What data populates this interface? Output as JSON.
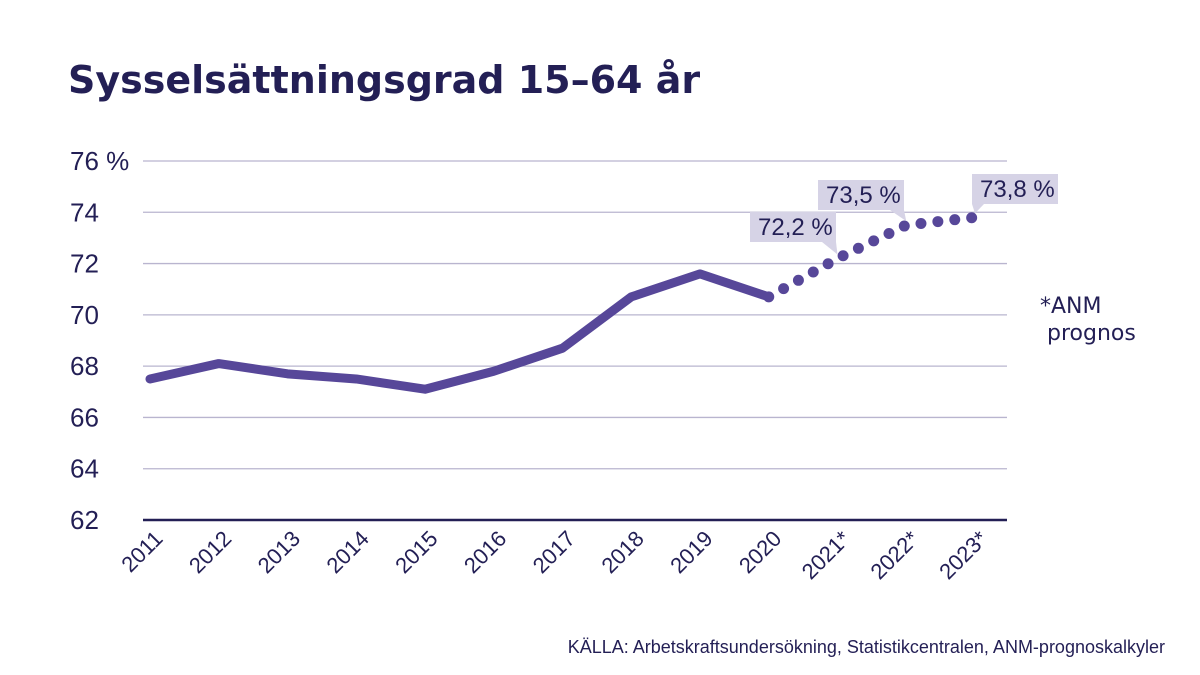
{
  "chart_data": {
    "type": "line",
    "title": "Sysselsättningsgrad 15–64 år",
    "categories": [
      "2011",
      "2012",
      "2013",
      "2014",
      "2015",
      "2016",
      "2017",
      "2018",
      "2019",
      "2020",
      "2021*",
      "2022*",
      "2023*"
    ],
    "series": [
      {
        "values": [
          67.5,
          68.1,
          67.7,
          67.5,
          67.1,
          67.8,
          68.7,
          70.7,
          71.6,
          70.7,
          72.2,
          73.5,
          73.8
        ],
        "forecast_from_index": 9
      }
    ],
    "yticks": [
      "76 %",
      "74",
      "72",
      "70",
      "68",
      "66",
      "64",
      "62"
    ],
    "ylim": [
      62,
      76
    ],
    "grid": true,
    "data_labels": [
      {
        "category": "2021*",
        "text": "72,2 %"
      },
      {
        "category": "2022*",
        "text": "73,5 %"
      },
      {
        "category": "2023*",
        "text": "73,8 %"
      }
    ],
    "note_line1": "*ANM",
    "note_line2": "prognos",
    "source": "KÄLLA: Arbetskraftsundersökning, Statistikcentralen, ANM-prognoskalkyler",
    "colors": {
      "line": "#574799",
      "text": "#231f55",
      "grid": "#b9b5cf",
      "label_bg": "#d6d3e6"
    }
  }
}
